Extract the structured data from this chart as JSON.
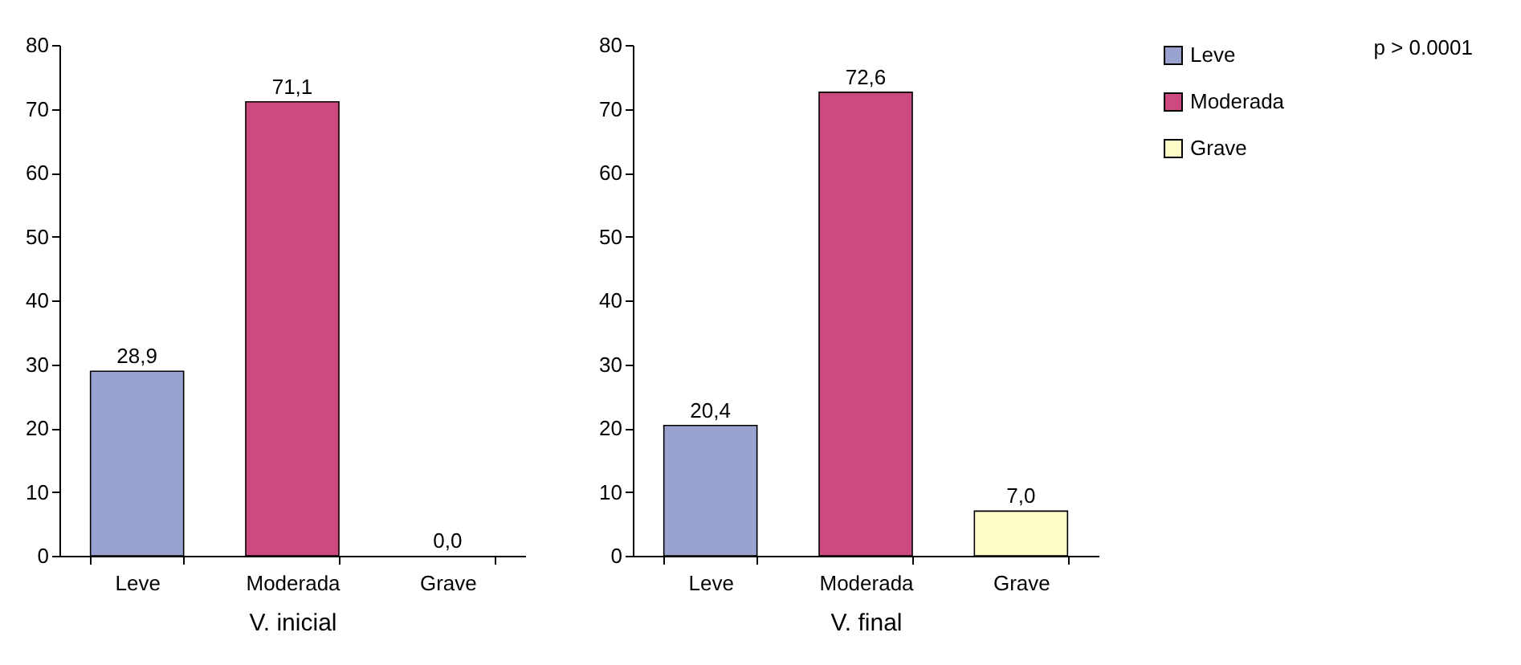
{
  "chart_data": [
    {
      "type": "bar",
      "categories": [
        "Leve",
        "Moderada",
        "Grave"
      ],
      "xlabel": "V. inicial",
      "ylim": [
        0,
        80
      ],
      "yticks": [
        0,
        10,
        20,
        30,
        40,
        50,
        60,
        70,
        80
      ],
      "grid": false,
      "legend": false,
      "series": [
        {
          "color": "#9aa3cf",
          "values": [
            28.9,
            null,
            null
          ],
          "value_labels": [
            "28,9",
            null,
            null
          ]
        },
        {
          "color": "#cc4a80",
          "values": [
            null,
            71.1,
            null
          ],
          "value_labels": [
            null,
            "71,1",
            null
          ]
        },
        {
          "color": "#fdfbc8",
          "values": [
            null,
            null,
            0.0
          ],
          "value_labels": [
            null,
            null,
            "0,0"
          ]
        }
      ]
    },
    {
      "type": "bar",
      "categories": [
        "Leve",
        "Moderada",
        "Grave"
      ],
      "xlabel": "V. final",
      "ylim": [
        0,
        80
      ],
      "yticks": [
        0,
        10,
        20,
        30,
        40,
        50,
        60,
        70,
        80
      ],
      "grid": false,
      "legend": "right",
      "annotations": [
        "p > 0.0001"
      ],
      "series": [
        {
          "name": "Leve",
          "color": "#9aa3cf",
          "values": [
            20.4,
            null,
            null
          ],
          "value_labels": [
            "20,4",
            null,
            null
          ]
        },
        {
          "name": "Moderada",
          "color": "#cc4a80",
          "values": [
            null,
            72.6,
            null
          ],
          "value_labels": [
            null,
            "72,6",
            null
          ]
        },
        {
          "name": "Grave",
          "color": "#fdfbc8",
          "values": [
            null,
            null,
            7.0
          ],
          "value_labels": [
            null,
            null,
            "7,0"
          ]
        }
      ]
    }
  ]
}
